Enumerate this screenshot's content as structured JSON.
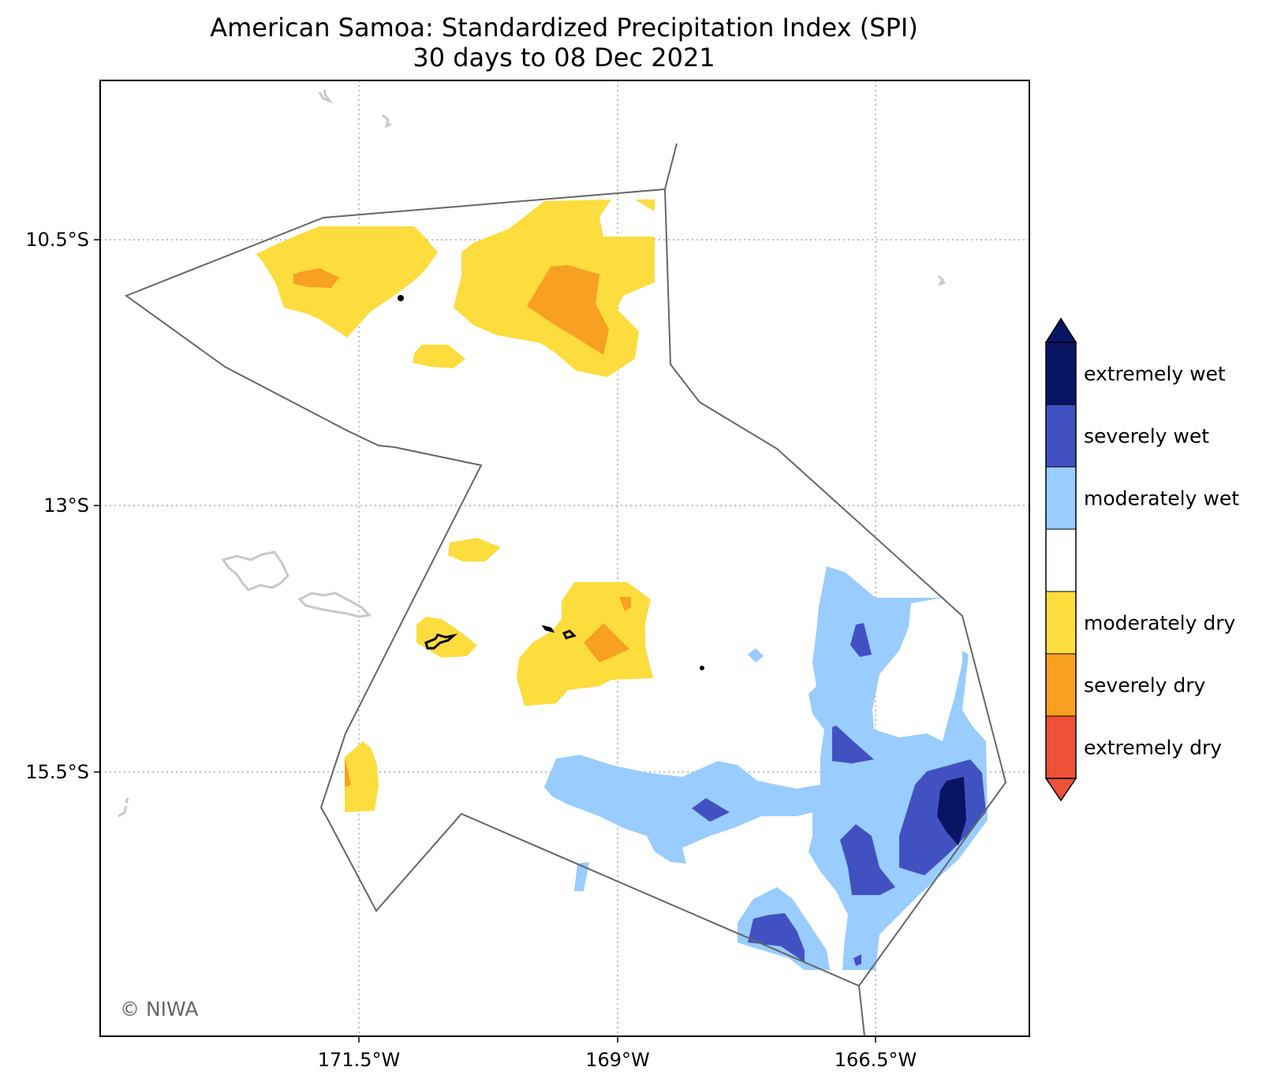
{
  "title": "American Samoa: Standardized Precipitation Index (SPI)",
  "subtitle": "30 days to 08 Dec 2021",
  "credit": "© NIWA",
  "x_ticks": [
    "171.5°W",
    "169°W",
    "166.5°W"
  ],
  "y_ticks": [
    "10.5°S",
    "13°S",
    "15.5°S"
  ],
  "colors": {
    "extremely_wet": "#0a1464",
    "severely_wet": "#4251c2",
    "moderately_wet": "#99ccff",
    "normal": "#ffffff",
    "moderately_dry": "#fddc3e",
    "severely_dry": "#f7a021",
    "extremely_dry": "#ee5038",
    "eez_boundary": "#666666",
    "land_outline": "#000000",
    "neighbour_land": "#c8c8c8",
    "grid": "#aaaaaa"
  },
  "legend": [
    {
      "label": "extremely wet",
      "color": "#0a1464"
    },
    {
      "label": "severely wet",
      "color": "#4251c2"
    },
    {
      "label": "moderately wet",
      "color": "#99ccff"
    },
    {
      "label": "",
      "color": "#ffffff"
    },
    {
      "label": "moderately dry",
      "color": "#fddc3e"
    },
    {
      "label": "severely dry",
      "color": "#f7a021"
    },
    {
      "label": "extremely dry",
      "color": "#ee5038"
    }
  ]
}
